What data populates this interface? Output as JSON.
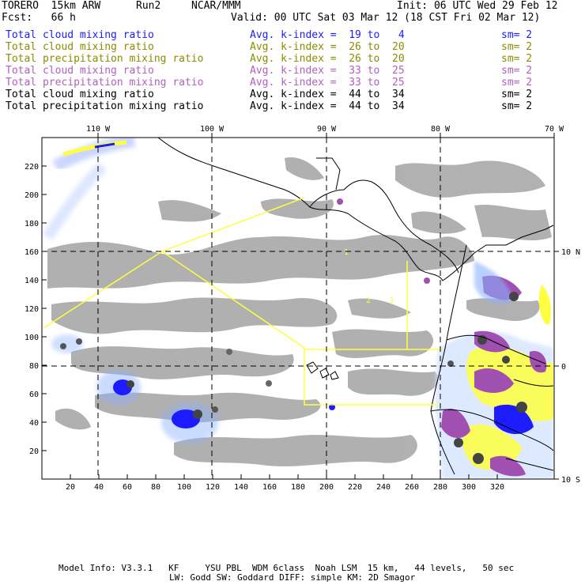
{
  "header": {
    "model": "TORERO  15km ARW",
    "run": "Run2",
    "org": "NCAR/MMM",
    "init": "Init: 06 UTC Wed 29 Feb 12",
    "fcst": "Fcst:   66 h",
    "valid": "Valid: 00 UTC Sat 03 Mar 12 (18 CST Fri 02 Mar 12)"
  },
  "legend": [
    {
      "name": "Total cloud mixing ratio",
      "kindex": "Avg. k-index =  19 to   4",
      "sm": "sm= 2",
      "color": "#1c1cff"
    },
    {
      "name": "Total cloud mixing ratio",
      "kindex": "Avg. k-index =  26 to  20",
      "sm": "sm= 2",
      "color": "#8c8c00"
    },
    {
      "name": "Total precipitation mixing ratio",
      "kindex": "Avg. k-index =  26 to  20",
      "sm": "sm= 2",
      "color": "#8c8c00"
    },
    {
      "name": "Total cloud mixing ratio",
      "kindex": "Avg. k-index =  33 to  25",
      "sm": "sm= 2",
      "color": "#b060c0"
    },
    {
      "name": "Total precipitation mixing ratio",
      "kindex": "Avg. k-index =  33 to  25",
      "sm": "sm= 2",
      "color": "#b060c0"
    },
    {
      "name": "Total cloud mixing ratio",
      "kindex": "Avg. k-index =  44 to  34",
      "sm": "sm= 2",
      "color": "#000000"
    },
    {
      "name": "Total precipitation mixing ratio",
      "kindex": "Avg. k-index =  44 to  34",
      "sm": "sm= 2",
      "color": "#000000"
    }
  ],
  "map": {
    "top_lon_labels": [
      "110 W",
      "100 W",
      "90 W",
      "80 W",
      "70 W"
    ],
    "right_lat_labels": [
      "10 N",
      "0",
      "10 S"
    ],
    "x_ticks": [
      "20",
      "40",
      "60",
      "80",
      "100",
      "120",
      "140",
      "160",
      "180",
      "200",
      "220",
      "240",
      "260",
      "280",
      "300",
      "320"
    ],
    "y_ticks": [
      "220",
      "200",
      "180",
      "160",
      "140",
      "120",
      "100",
      "80",
      "60",
      "40",
      "20"
    ],
    "colors": {
      "cloud": "#a8a8a8",
      "blue": "#1c1cff",
      "purple": "#a050b0",
      "yellow": "#ffff40",
      "border": "#000000",
      "domain": "#ffff40"
    }
  },
  "footer": {
    "line1": "Model Info: V3.3.1   KF     YSU PBL  WDM 6class  Noah LSM  15 km,   44 levels,   50 sec",
    "line2": "LW: Godd SW: Goddard DIFF: simple KM: 2D Smagor"
  }
}
